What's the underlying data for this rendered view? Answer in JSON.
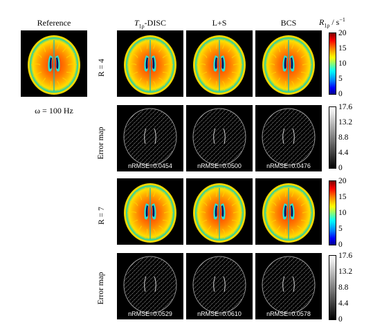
{
  "columns": {
    "reference": "Reference",
    "disc": "T",
    "disc_sub": "1ρ",
    "disc_suffix": "-DISC",
    "ls": "L+S",
    "bcs": "BCS"
  },
  "reference_caption": "ω = 100 Hz",
  "rows": {
    "r4": "R = 4",
    "err1": "Error map",
    "r7": "R = 7",
    "err2": "Error map"
  },
  "nrmse": {
    "r4_disc": "nRMSE=0.0454",
    "r4_ls": "nRMSE=0.0500",
    "r4_bcs": "nRMSE=0.0476",
    "r7_disc": "nRMSE=0.0529",
    "r7_ls": "nRMSE=0.0610",
    "r7_bcs": "nRMSE=0.0578"
  },
  "colorbar_r1rho": {
    "title_main": "R",
    "title_sub": "1ρ",
    "title_unit": " / s",
    "title_exp": "−1",
    "ticks": [
      "20",
      "15",
      "10",
      "5",
      "0"
    ],
    "colormap": "jet"
  },
  "colorbar_error": {
    "ticks": [
      "17.6",
      "13.2",
      "8.8",
      "4.4",
      "0"
    ],
    "colormap": "gray"
  }
}
